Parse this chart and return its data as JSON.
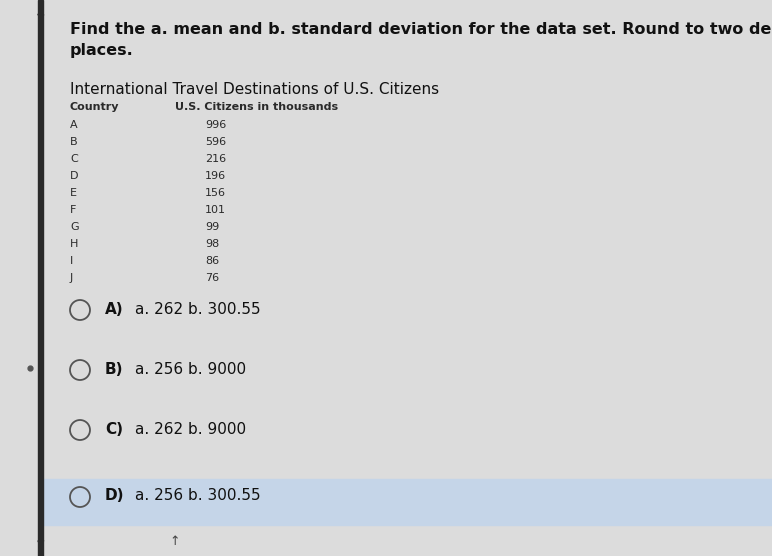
{
  "question_line1": "Find the a. mean and b. standard deviation for the data set. Round to two decimal",
  "question_line2": "places.",
  "table_title": "International Travel Destinations of U.S. Citizens",
  "col1_header": "Country",
  "col2_header": "U.S. Citizens in thousands",
  "countries": [
    "A",
    "B",
    "C",
    "D",
    "E",
    "F",
    "G",
    "H",
    "I",
    "J"
  ],
  "values": [
    "996",
    "596",
    "216",
    "196",
    "156",
    "101",
    "99",
    "98",
    "86",
    "76"
  ],
  "options": [
    {
      "label": "A)",
      "text": "a. 262 b. 300.55"
    },
    {
      "label": "B)",
      "text": "a. 256 b. 9000"
    },
    {
      "label": "C)",
      "text": "a. 262 b. 9000"
    },
    {
      "label": "D)",
      "text": "a. 256 b. 300.55"
    }
  ],
  "highlighted_option": 3,
  "bg_color": "#dcdcdc",
  "highlight_color": "#c5d5e8",
  "table_header_color": "#2a2a2a",
  "table_row_color": "#2a2a2a",
  "text_color": "#111111",
  "left_bar_color": "#2a2a2a",
  "option_circle_color": "#555555",
  "question_fontsize": 11.5,
  "table_title_fontsize": 11,
  "header_fontsize": 8,
  "row_fontsize": 8,
  "option_fontsize": 11
}
